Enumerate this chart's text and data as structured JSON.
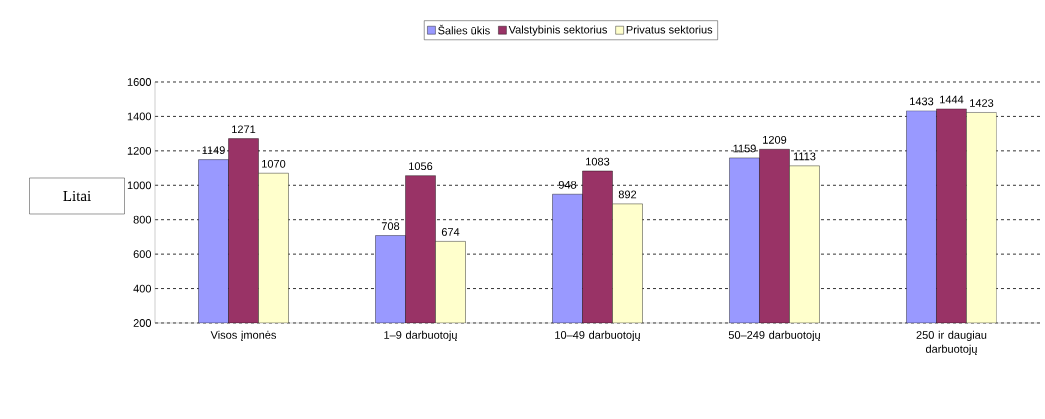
{
  "chart_data": {
    "type": "bar",
    "ylabel": "Litai",
    "categories": [
      "Visos įmonės",
      "1–9 darbuotojų",
      "10–49 darbuotojų",
      "50–249 darbuotojų",
      "250 ir daugiau darbuotojų"
    ],
    "series": [
      {
        "name": "Šalies ūkis",
        "color": "#9999ff",
        "values": [
          1149,
          708,
          948,
          1159,
          1433
        ]
      },
      {
        "name": "Valstybinis sektorius",
        "color": "#993366",
        "values": [
          1271,
          1056,
          1083,
          1209,
          1444
        ]
      },
      {
        "name": "Privatus sektorius",
        "color": "#ffffcc",
        "values": [
          1070,
          674,
          892,
          1113,
          1423
        ]
      }
    ],
    "ylim": [
      200,
      1600
    ],
    "yticks": [
      200,
      400,
      600,
      800,
      1000,
      1200,
      1400,
      1600
    ],
    "grid": "y",
    "legend": "top",
    "data_labels": true
  }
}
